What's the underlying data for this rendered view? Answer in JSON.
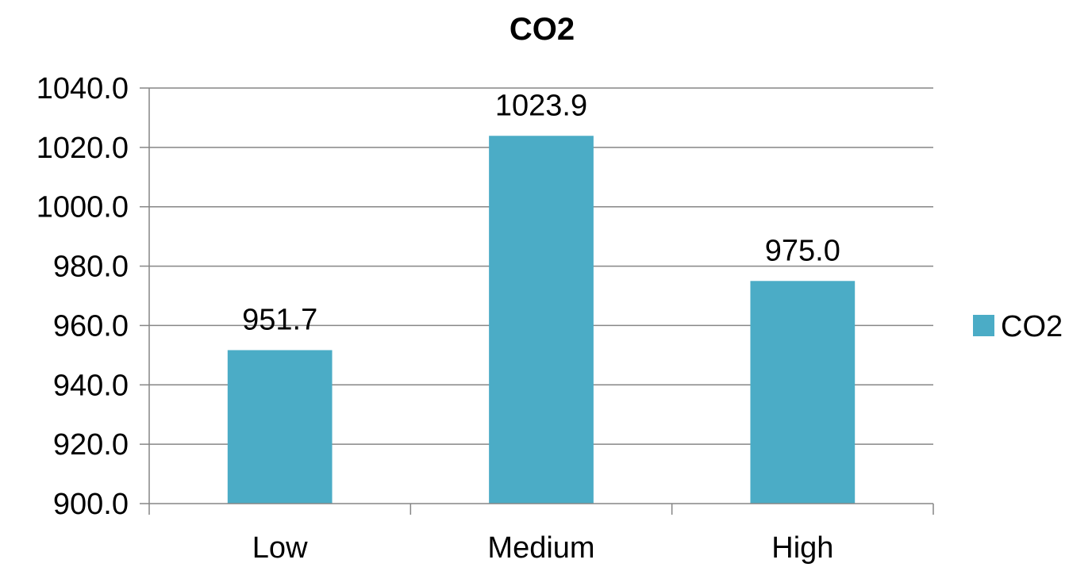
{
  "chart_data": {
    "type": "bar",
    "title": "CO2",
    "categories": [
      "Low",
      "Medium",
      "High"
    ],
    "series": [
      {
        "name": "CO2",
        "values": [
          951.7,
          1023.9,
          975.0
        ],
        "color": "#4BACC6"
      }
    ],
    "data_labels": [
      "951.7",
      "1023.9",
      "975.0"
    ],
    "ylim": [
      900,
      1040
    ],
    "yticks": [
      900,
      920,
      940,
      960,
      980,
      1000,
      1020,
      1040
    ],
    "ytick_labels": [
      "900.0",
      "920.0",
      "940.0",
      "960.0",
      "980.0",
      "1000.0",
      "1020.0",
      "1040.0"
    ],
    "grid": true,
    "legend": {
      "position": "right",
      "entries": [
        "CO2"
      ]
    }
  }
}
